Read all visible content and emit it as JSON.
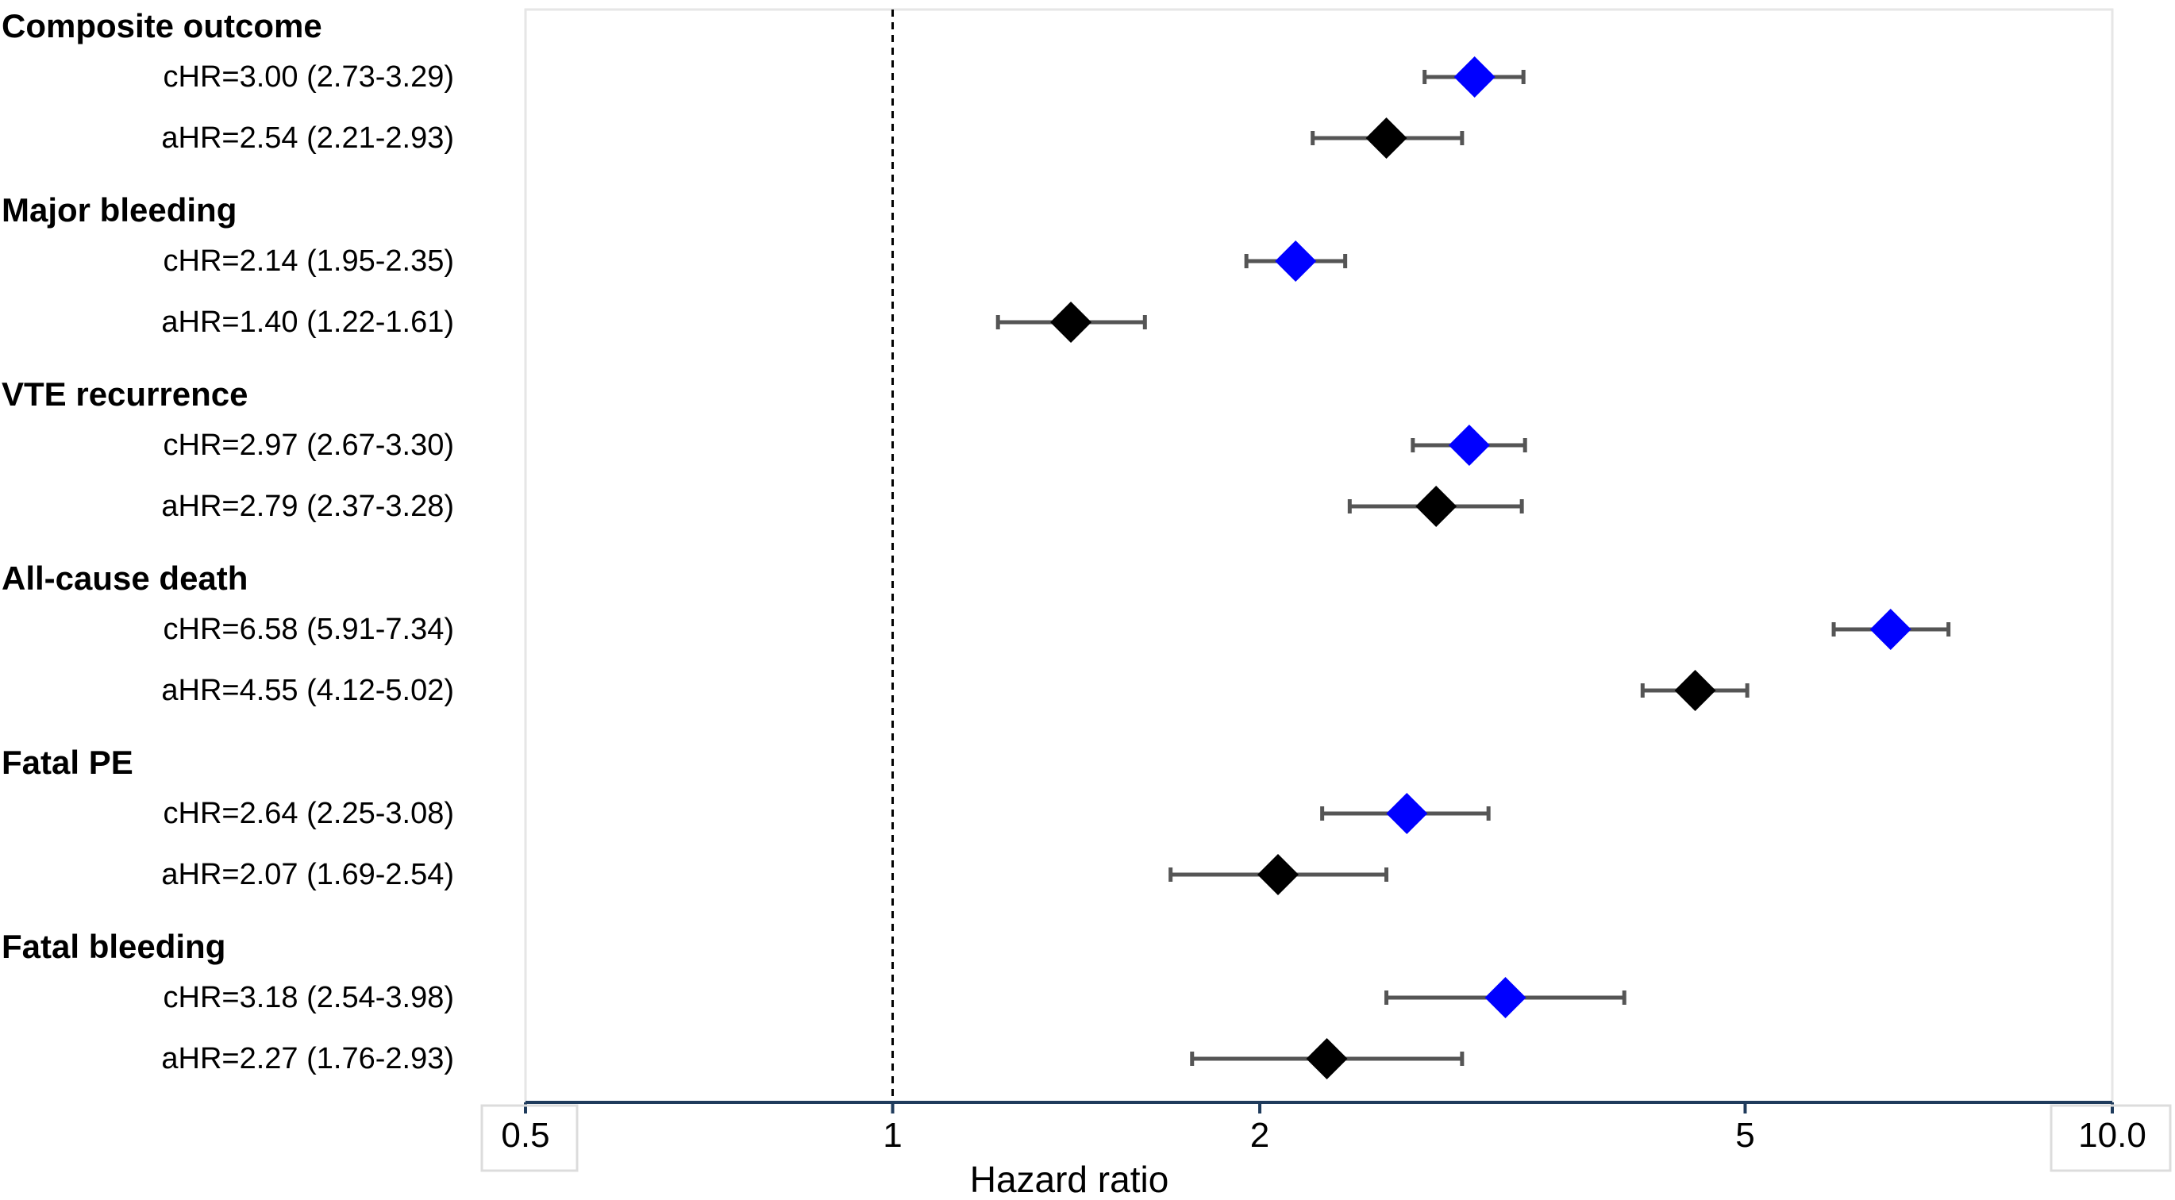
{
  "chart_data": {
    "type": "forest",
    "xlabel": "Hazard ratio",
    "x_scale": "log",
    "xlim": [
      0.5,
      10.0
    ],
    "xticks": [
      {
        "value": 0.5,
        "label": "0.5"
      },
      {
        "value": 1,
        "label": "1"
      },
      {
        "value": 2,
        "label": "2"
      },
      {
        "value": 5,
        "label": "5"
      },
      {
        "value": 10,
        "label": "10.0"
      }
    ],
    "reference_line": 1,
    "colors": {
      "cHR": "#0000ff",
      "aHR": "#000000",
      "whisker": "#555555"
    },
    "groups": [
      {
        "title": "Composite outcome",
        "rows": [
          {
            "label": "cHR=3.00 (2.73-3.29)",
            "type": "cHR",
            "hr": 3.0,
            "lo": 2.73,
            "hi": 3.29
          },
          {
            "label": "aHR=2.54 (2.21-2.93)",
            "type": "aHR",
            "hr": 2.54,
            "lo": 2.21,
            "hi": 2.93
          }
        ]
      },
      {
        "title": "Major bleeding",
        "rows": [
          {
            "label": "cHR=2.14 (1.95-2.35)",
            "type": "cHR",
            "hr": 2.14,
            "lo": 1.95,
            "hi": 2.35
          },
          {
            "label": "aHR=1.40 (1.22-1.61)",
            "type": "aHR",
            "hr": 1.4,
            "lo": 1.22,
            "hi": 1.61
          }
        ]
      },
      {
        "title": "VTE recurrence",
        "rows": [
          {
            "label": "cHR=2.97 (2.67-3.30)",
            "type": "cHR",
            "hr": 2.97,
            "lo": 2.67,
            "hi": 3.3
          },
          {
            "label": "aHR=2.79 (2.37-3.28)",
            "type": "aHR",
            "hr": 2.79,
            "lo": 2.37,
            "hi": 3.28
          }
        ]
      },
      {
        "title": "All-cause death",
        "rows": [
          {
            "label": "cHR=6.58 (5.91-7.34)",
            "type": "cHR",
            "hr": 6.58,
            "lo": 5.91,
            "hi": 7.34
          },
          {
            "label": "aHR=4.55 (4.12-5.02)",
            "type": "aHR",
            "hr": 4.55,
            "lo": 4.12,
            "hi": 5.02
          }
        ]
      },
      {
        "title": "Fatal PE",
        "rows": [
          {
            "label": "cHR=2.64 (2.25-3.08)",
            "type": "cHR",
            "hr": 2.64,
            "lo": 2.25,
            "hi": 3.08
          },
          {
            "label": "aHR=2.07 (1.69-2.54)",
            "type": "aHR",
            "hr": 2.07,
            "lo": 1.69,
            "hi": 2.54
          }
        ]
      },
      {
        "title": "Fatal bleeding",
        "rows": [
          {
            "label": "cHR=3.18 (2.54-3.98)",
            "type": "cHR",
            "hr": 3.18,
            "lo": 2.54,
            "hi": 3.98
          },
          {
            "label": "aHR=2.27 (1.76-2.93)",
            "type": "aHR",
            "hr": 2.27,
            "lo": 1.76,
            "hi": 2.93
          }
        ]
      }
    ]
  }
}
